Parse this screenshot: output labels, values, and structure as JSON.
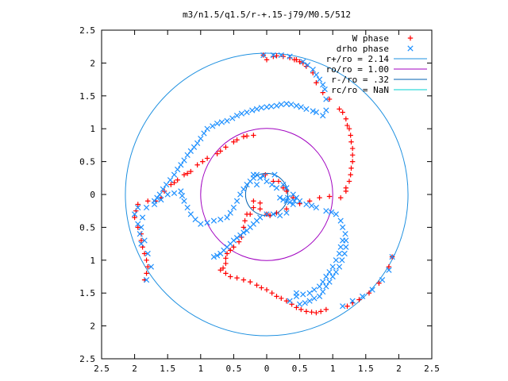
{
  "chart_data": {
    "type": "scatter",
    "title": "m3/n1.5/q1.5/r-+.15-j79/M0.5/512",
    "xlabel": "",
    "ylabel": "",
    "xlim": [
      -2.5,
      2.5
    ],
    "ylim": [
      -2.5,
      2.5
    ],
    "x_ticks": [
      -2.5,
      -2,
      -1.5,
      -1,
      -0.5,
      0,
      0.5,
      1,
      1.5,
      2,
      2.5
    ],
    "y_ticks": [
      -2.5,
      -2,
      -1.5,
      -1,
      -0.5,
      0,
      0.5,
      1,
      1.5,
      2,
      2.5
    ],
    "x_tick_labels": [
      "2.5",
      "2",
      "1.5",
      "1",
      "0.5",
      "0",
      "0.5",
      "1",
      "1.5",
      "2",
      "2.5"
    ],
    "y_tick_labels": [
      "2.5",
      "2",
      "1.5",
      "1",
      "0.5",
      "0",
      "0.5",
      "1",
      "1.5",
      "2",
      "2.5"
    ],
    "grid": false,
    "legend_position": "top-right",
    "colors": {
      "w_phase": "#ff0000",
      "drho_phase": "#1e90ff",
      "r_plus": "#1e90e0",
      "r_o": "#a000c0",
      "r_minus": "#0060b0",
      "r_c": "#00d0d0"
    },
    "series": [
      {
        "name": "W phase",
        "marker": "+",
        "color": "#ff0000",
        "points": [
          [
            -0.05,
            2.12
          ],
          [
            0.15,
            2.11
          ],
          [
            0.35,
            2.08
          ],
          [
            0.55,
            2.0
          ],
          [
            0.7,
            1.85
          ],
          [
            0.75,
            1.7
          ],
          [
            0.85,
            1.55
          ],
          [
            0.95,
            1.45
          ],
          [
            1.1,
            1.3
          ],
          [
            1.2,
            1.15
          ],
          [
            1.25,
            1.0
          ],
          [
            1.28,
            0.8
          ],
          [
            1.3,
            0.6
          ],
          [
            1.28,
            0.4
          ],
          [
            1.25,
            0.2
          ],
          [
            1.2,
            0.05
          ],
          [
            1.12,
            -0.05
          ],
          [
            0.95,
            -0.03
          ],
          [
            0.8,
            -0.05
          ],
          [
            0.65,
            -0.1
          ],
          [
            0.5,
            -0.14
          ],
          [
            0.3,
            -0.22
          ],
          [
            0.15,
            -0.28
          ],
          [
            0.05,
            -0.32
          ],
          [
            0.0,
            -0.3
          ],
          [
            -0.1,
            -0.22
          ],
          [
            -0.2,
            -0.2
          ],
          [
            -0.3,
            -0.3
          ],
          [
            -0.35,
            -0.5
          ],
          [
            -0.38,
            -0.65
          ],
          [
            -0.5,
            -0.8
          ],
          [
            -0.6,
            -0.9
          ],
          [
            -0.62,
            -1.05
          ],
          [
            -0.7,
            -1.15
          ],
          [
            -0.55,
            -1.25
          ],
          [
            -0.35,
            -1.3
          ],
          [
            -0.15,
            -1.38
          ],
          [
            0.0,
            -1.45
          ],
          [
            0.15,
            -1.55
          ],
          [
            0.3,
            -1.62
          ],
          [
            0.45,
            -1.72
          ],
          [
            0.6,
            -1.78
          ],
          [
            0.75,
            -1.8
          ],
          [
            0.9,
            -1.75
          ],
          [
            0.0,
            2.05
          ],
          [
            0.1,
            2.1
          ],
          [
            0.25,
            2.1
          ],
          [
            0.45,
            2.05
          ],
          [
            0.6,
            1.95
          ],
          [
            1.15,
            1.25
          ],
          [
            1.22,
            1.05
          ],
          [
            1.27,
            0.9
          ],
          [
            1.3,
            0.7
          ],
          [
            1.3,
            0.5
          ],
          [
            1.27,
            0.3
          ],
          [
            1.2,
            0.1
          ],
          [
            -0.25,
            -0.3
          ],
          [
            -0.33,
            -0.4
          ],
          [
            -0.42,
            -0.72
          ],
          [
            -0.55,
            -0.85
          ],
          [
            -0.62,
            -0.97
          ],
          [
            -0.66,
            -1.12
          ],
          [
            -0.62,
            -1.2
          ],
          [
            -0.45,
            -1.27
          ],
          [
            -0.25,
            -1.33
          ],
          [
            -0.08,
            -1.42
          ],
          [
            0.08,
            -1.5
          ],
          [
            0.22,
            -1.58
          ],
          [
            0.38,
            -1.67
          ],
          [
            0.52,
            -1.75
          ],
          [
            0.68,
            -1.79
          ],
          [
            0.82,
            -1.78
          ],
          [
            -0.2,
            0.9
          ],
          [
            -0.35,
            0.88
          ],
          [
            -0.5,
            0.8
          ],
          [
            -0.62,
            0.72
          ],
          [
            -0.75,
            0.62
          ],
          [
            -0.9,
            0.55
          ],
          [
            -1.05,
            0.45
          ],
          [
            -1.15,
            0.35
          ],
          [
            -1.25,
            0.3
          ],
          [
            -1.35,
            0.22
          ],
          [
            -1.45,
            0.15
          ],
          [
            -1.55,
            0.05
          ],
          [
            -1.6,
            -0.05
          ],
          [
            -1.68,
            -0.1
          ],
          [
            -1.8,
            -0.1
          ],
          [
            -0.3,
            0.89
          ],
          [
            -0.45,
            0.83
          ],
          [
            -0.7,
            0.66
          ],
          [
            -0.97,
            0.5
          ],
          [
            -1.2,
            0.32
          ],
          [
            -1.4,
            0.18
          ],
          [
            -1.95,
            -0.15
          ],
          [
            -1.98,
            -0.25
          ],
          [
            -2.0,
            -0.35
          ],
          [
            -1.95,
            -0.5
          ],
          [
            -1.9,
            -0.7
          ],
          [
            -1.85,
            -0.9
          ],
          [
            -1.8,
            -1.1
          ],
          [
            -1.85,
            -1.3
          ],
          [
            -1.9,
            -0.6
          ],
          [
            -1.88,
            -0.8
          ],
          [
            -1.82,
            -1.0
          ],
          [
            -1.82,
            -1.2
          ],
          [
            -0.1,
            -0.13
          ],
          [
            -0.2,
            -0.1
          ],
          [
            -0.02,
            0.3
          ],
          [
            0.1,
            0.2
          ],
          [
            0.18,
            0.2
          ],
          [
            0.25,
            0.1
          ],
          [
            0.3,
            0.05
          ],
          [
            0.4,
            -0.05
          ],
          [
            0.42,
            2.05
          ],
          [
            0.5,
            2.02
          ],
          [
            1.4,
            -1.6
          ],
          [
            1.55,
            -1.5
          ],
          [
            1.7,
            -1.35
          ],
          [
            1.85,
            -1.1
          ],
          [
            1.9,
            -0.95
          ],
          [
            1.22,
            -1.7
          ],
          [
            1.3,
            -1.65
          ]
        ]
      },
      {
        "name": "drho phase",
        "marker": "x",
        "color": "#1e90ff",
        "points": [
          [
            0.85,
            1.2
          ],
          [
            0.75,
            1.25
          ],
          [
            0.6,
            1.3
          ],
          [
            0.45,
            1.35
          ],
          [
            0.3,
            1.38
          ],
          [
            0.15,
            1.35
          ],
          [
            0.0,
            1.33
          ],
          [
            -0.15,
            1.3
          ],
          [
            -0.3,
            1.25
          ],
          [
            -0.45,
            1.2
          ],
          [
            -0.6,
            1.12
          ],
          [
            -0.75,
            1.08
          ],
          [
            -0.9,
            1.0
          ],
          [
            -1.0,
            0.85
          ],
          [
            -1.1,
            0.72
          ],
          [
            -1.2,
            0.6
          ],
          [
            -1.3,
            0.45
          ],
          [
            -1.4,
            0.3
          ],
          [
            -1.52,
            0.15
          ],
          [
            -1.62,
            0.0
          ],
          [
            -1.7,
            -0.1
          ],
          [
            -1.82,
            -0.2
          ],
          [
            -1.88,
            -0.35
          ],
          [
            -1.9,
            -0.5
          ],
          [
            -1.85,
            -0.7
          ],
          [
            -1.8,
            -0.9
          ],
          [
            -1.75,
            -1.1
          ],
          [
            -1.82,
            -1.3
          ],
          [
            0.9,
            1.28
          ],
          [
            0.7,
            1.27
          ],
          [
            0.52,
            1.33
          ],
          [
            0.37,
            1.37
          ],
          [
            0.22,
            1.37
          ],
          [
            0.07,
            1.34
          ],
          [
            -0.08,
            1.32
          ],
          [
            -0.22,
            1.28
          ],
          [
            -0.38,
            1.23
          ],
          [
            -0.52,
            1.16
          ],
          [
            -0.68,
            1.1
          ],
          [
            -0.82,
            1.04
          ],
          [
            -0.95,
            0.93
          ],
          [
            -1.05,
            0.78
          ],
          [
            -1.15,
            0.66
          ],
          [
            -1.25,
            0.52
          ],
          [
            -1.35,
            0.38
          ],
          [
            -1.46,
            0.22
          ],
          [
            -1.57,
            0.08
          ],
          [
            -1.66,
            -0.05
          ],
          [
            -0.15,
            0.3
          ],
          [
            -0.2,
            0.25
          ],
          [
            -0.3,
            0.15
          ],
          [
            -0.4,
            0.0
          ],
          [
            -0.5,
            -0.2
          ],
          [
            -0.6,
            -0.35
          ],
          [
            -0.8,
            -0.4
          ],
          [
            -1.0,
            -0.45
          ],
          [
            -1.15,
            -0.3
          ],
          [
            -1.25,
            -0.1
          ],
          [
            -1.3,
            0.05
          ],
          [
            -1.5,
            0.0
          ],
          [
            -1.6,
            -0.08
          ],
          [
            -1.7,
            -0.15
          ],
          [
            -0.25,
            0.2
          ],
          [
            -0.35,
            0.08
          ],
          [
            -0.45,
            -0.1
          ],
          [
            -0.55,
            -0.28
          ],
          [
            -0.7,
            -0.38
          ],
          [
            -0.9,
            -0.43
          ],
          [
            -1.08,
            -0.38
          ],
          [
            -1.2,
            -0.2
          ],
          [
            -1.28,
            -0.02
          ],
          [
            -1.4,
            0.02
          ],
          [
            0.3,
            0.1
          ],
          [
            0.4,
            0.0
          ],
          [
            0.5,
            -0.1
          ],
          [
            0.6,
            -0.15
          ],
          [
            0.75,
            -0.2
          ],
          [
            0.9,
            -0.25
          ],
          [
            1.05,
            -0.3
          ],
          [
            1.15,
            -0.5
          ],
          [
            1.2,
            -0.7
          ],
          [
            1.18,
            -0.9
          ],
          [
            1.1,
            -1.1
          ],
          [
            1.0,
            -1.25
          ],
          [
            0.9,
            -1.4
          ],
          [
            0.8,
            -1.55
          ],
          [
            0.65,
            -1.62
          ],
          [
            0.5,
            -1.67
          ],
          [
            0.35,
            -1.62
          ],
          [
            0.45,
            -1.5
          ],
          [
            0.45,
            -0.05
          ],
          [
            0.68,
            -0.17
          ],
          [
            0.98,
            -0.27
          ],
          [
            1.12,
            -0.4
          ],
          [
            1.19,
            -0.6
          ],
          [
            1.2,
            -0.8
          ],
          [
            1.14,
            -1.0
          ],
          [
            1.05,
            -1.18
          ],
          [
            0.95,
            -1.33
          ],
          [
            0.85,
            -1.48
          ],
          [
            0.72,
            -1.58
          ],
          [
            0.58,
            -1.65
          ],
          [
            -0.05,
            2.12
          ],
          [
            0.1,
            2.12
          ],
          [
            0.35,
            2.1
          ],
          [
            0.55,
            2.02
          ],
          [
            0.7,
            1.9
          ],
          [
            0.8,
            1.75
          ],
          [
            0.88,
            1.6
          ],
          [
            0.9,
            1.45
          ],
          [
            0.22,
            2.12
          ],
          [
            0.62,
            1.97
          ],
          [
            0.75,
            1.82
          ],
          [
            0.85,
            1.67
          ],
          [
            -0.8,
            -0.95
          ],
          [
            -0.7,
            -0.9
          ],
          [
            -0.6,
            -0.8
          ],
          [
            -0.5,
            -0.7
          ],
          [
            -0.4,
            -0.62
          ],
          [
            -0.3,
            -0.55
          ],
          [
            -0.2,
            -0.45
          ],
          [
            -0.1,
            -0.35
          ],
          [
            0.0,
            -0.3
          ],
          [
            0.1,
            -0.3
          ],
          [
            0.2,
            -0.32
          ],
          [
            0.3,
            -0.28
          ],
          [
            -0.75,
            -0.93
          ],
          [
            -0.65,
            -0.85
          ],
          [
            -0.55,
            -0.75
          ],
          [
            -0.45,
            -0.66
          ],
          [
            -0.35,
            -0.58
          ],
          [
            -0.25,
            -0.5
          ],
          [
            -0.15,
            -0.4
          ],
          [
            0.45,
            -1.55
          ],
          [
            0.65,
            -1.5
          ],
          [
            0.8,
            -1.4
          ],
          [
            0.9,
            -1.25
          ],
          [
            1.0,
            -1.1
          ],
          [
            1.1,
            -0.9
          ],
          [
            1.15,
            -0.7
          ],
          [
            0.55,
            -1.52
          ],
          [
            0.72,
            -1.45
          ],
          [
            0.85,
            -1.33
          ],
          [
            0.95,
            -1.18
          ],
          [
            1.05,
            -1.0
          ],
          [
            1.12,
            -0.8
          ],
          [
            -0.1,
            0.25
          ],
          [
            0.0,
            0.2
          ],
          [
            0.15,
            0.1
          ],
          [
            0.2,
            -0.05
          ],
          [
            0.3,
            -0.1
          ],
          [
            0.4,
            -0.15
          ],
          [
            -0.05,
            0.28
          ],
          [
            0.08,
            0.15
          ],
          [
            0.25,
            -0.08
          ],
          [
            0.35,
            -0.12
          ],
          [
            1.15,
            -1.7
          ],
          [
            1.3,
            -1.62
          ],
          [
            1.45,
            -1.55
          ],
          [
            1.6,
            -1.45
          ],
          [
            1.75,
            -1.3
          ],
          [
            1.85,
            -1.15
          ],
          [
            1.9,
            -0.95
          ],
          [
            -1.95,
            -0.2
          ],
          [
            -2.0,
            -0.3
          ],
          [
            -1.95,
            -0.45
          ],
          [
            -1.92,
            -0.6
          ],
          [
            -1.9,
            -0.75
          ],
          [
            -0.2,
            0.3
          ],
          [
            -0.15,
            0.15
          ],
          [
            0.12,
            0.3
          ],
          [
            0.25,
            0.15
          ],
          [
            0.32,
            -0.05
          ],
          [
            0.42,
            -0.1
          ]
        ]
      },
      {
        "name": "r+/ro = 2.14",
        "radius": 2.14,
        "color": "#1e90e0"
      },
      {
        "name": "ro/ro = 1.00",
        "radius": 1.0,
        "color": "#a000c0"
      },
      {
        "name": "r-/ro = .32",
        "radius": 0.32,
        "color": "#0060b0"
      },
      {
        "name": "rc/ro = NaN",
        "radius": null,
        "color": "#00d0d0"
      }
    ]
  }
}
